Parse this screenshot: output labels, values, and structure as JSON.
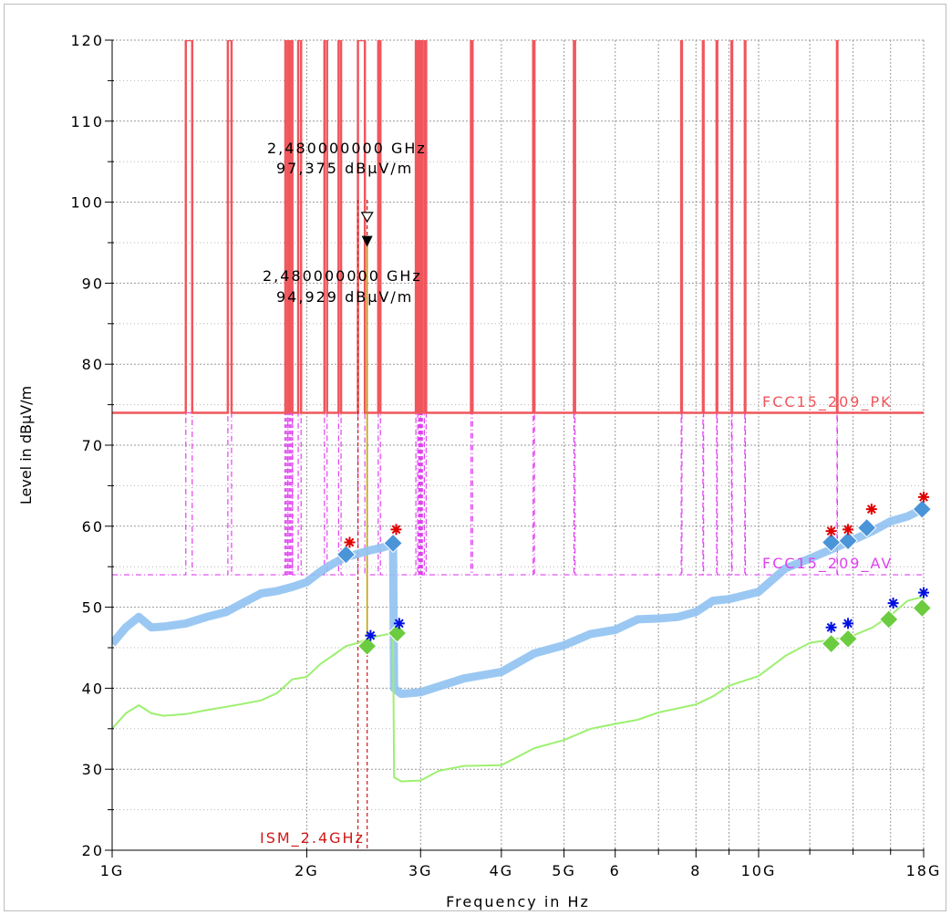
{
  "chart_data": {
    "type": "line",
    "xlabel": "Frequency in Hz",
    "ylabel": "Level in dBµV/m",
    "xscale": "log",
    "xlim": [
      1,
      18
    ],
    "ylim": [
      20,
      120
    ],
    "grid": true,
    "x_ticks": [
      {
        "value": 1,
        "label": "1G"
      },
      {
        "value": 2,
        "label": "2G"
      },
      {
        "value": 3,
        "label": "3G"
      },
      {
        "value": 4,
        "label": "4G"
      },
      {
        "value": 5,
        "label": "5G"
      },
      {
        "value": 6,
        "label": "6"
      },
      {
        "value": 8,
        "label": "8"
      },
      {
        "value": 10,
        "label": "10G"
      },
      {
        "value": 18,
        "label": "18G"
      }
    ],
    "x_minor_ticks": [
      7,
      9,
      12,
      14,
      16
    ],
    "y_ticks": [
      20,
      30,
      40,
      50,
      60,
      70,
      80,
      90,
      100,
      110,
      120
    ],
    "limit_pk": {
      "label": "FCC15_209_PK",
      "color": "#f0565c",
      "level": 74,
      "top": 120,
      "bands_ghz": [
        [
          1.3,
          1.33
        ],
        [
          1.51,
          1.53
        ],
        [
          1.87,
          1.9
        ],
        [
          1.94,
          1.96
        ],
        [
          2.13,
          2.15
        ],
        [
          2.24,
          2.26
        ],
        [
          2.4,
          2.46
        ],
        [
          2.58,
          2.6
        ],
        [
          2.95,
          2.97
        ],
        [
          3.04,
          3.06
        ],
        [
          3.59,
          3.61
        ],
        [
          4.48,
          4.5
        ],
        [
          5.18,
          5.2
        ],
        [
          7.59,
          7.61
        ],
        [
          8.2,
          8.22
        ],
        [
          8.61,
          8.63
        ],
        [
          9.08,
          9.1
        ],
        [
          9.52,
          9.54
        ],
        [
          13.22,
          13.24
        ]
      ],
      "hatched_ghz": [
        [
          1.85,
          1.91
        ],
        [
          2.98,
          3.02
        ]
      ]
    },
    "limit_av": {
      "label": "FCC15_209_AV",
      "color": "#e040f0",
      "level": 54,
      "top": 74
    },
    "ism_band": {
      "label": "ISM_2.4GHz",
      "color": "#d01818",
      "from": 2.4,
      "to": 2.48
    },
    "markers": [
      {
        "freq": "2,480000000 GHz",
        "level": "97,375 dBµV/m",
        "value": 97.375,
        "x": 2.48
      },
      {
        "freq": "2,480000000 GHz",
        "level": "94,929 dBµV/m",
        "value": 94.929,
        "x": 2.48
      }
    ],
    "series": [
      {
        "color": "#90c2f2",
        "points": [
          [
            1.0,
            45.5
          ],
          [
            1.05,
            47.5
          ],
          [
            1.1,
            48.8
          ],
          [
            1.15,
            47.5
          ],
          [
            1.2,
            47.6
          ],
          [
            1.3,
            48.0
          ],
          [
            1.4,
            48.8
          ],
          [
            1.5,
            49.4
          ],
          [
            1.6,
            50.6
          ],
          [
            1.7,
            51.7
          ],
          [
            1.8,
            52.0
          ],
          [
            1.9,
            52.5
          ],
          [
            2.0,
            53.1
          ],
          [
            2.1,
            54.4
          ],
          [
            2.2,
            55.4
          ],
          [
            2.3,
            56.2
          ],
          [
            2.4,
            56.6
          ],
          [
            2.5,
            57.0
          ],
          [
            2.6,
            57.3
          ],
          [
            2.72,
            57.8
          ],
          [
            2.73,
            40.0
          ],
          [
            2.8,
            39.3
          ],
          [
            3.0,
            39.5
          ],
          [
            3.5,
            41.2
          ],
          [
            4.0,
            42.0
          ],
          [
            4.5,
            44.3
          ],
          [
            5.0,
            45.3
          ],
          [
            5.5,
            46.7
          ],
          [
            6.0,
            47.2
          ],
          [
            6.5,
            48.5
          ],
          [
            7.0,
            48.6
          ],
          [
            7.5,
            48.8
          ],
          [
            8.0,
            49.4
          ],
          [
            8.5,
            50.8
          ],
          [
            9.0,
            51.0
          ],
          [
            10.0,
            51.9
          ],
          [
            11.0,
            54.8
          ],
          [
            12.0,
            56.0
          ],
          [
            13.0,
            57.2
          ],
          [
            14.0,
            58.3
          ],
          [
            15.0,
            59.4
          ],
          [
            16.0,
            60.6
          ],
          [
            17.0,
            61.2
          ],
          [
            18.0,
            62.2
          ]
        ]
      },
      {
        "color": "#9df070",
        "points": [
          [
            1.0,
            35.0
          ],
          [
            1.05,
            36.9
          ],
          [
            1.1,
            37.9
          ],
          [
            1.15,
            36.9
          ],
          [
            1.2,
            36.6
          ],
          [
            1.3,
            36.8
          ],
          [
            1.4,
            37.3
          ],
          [
            1.5,
            37.7
          ],
          [
            1.6,
            38.1
          ],
          [
            1.7,
            38.5
          ],
          [
            1.8,
            39.4
          ],
          [
            1.9,
            41.1
          ],
          [
            2.0,
            41.4
          ],
          [
            2.1,
            43.0
          ],
          [
            2.2,
            44.1
          ],
          [
            2.3,
            45.2
          ],
          [
            2.4,
            45.6
          ],
          [
            2.5,
            46.2
          ],
          [
            2.6,
            46.5
          ],
          [
            2.72,
            46.8
          ],
          [
            2.73,
            29.0
          ],
          [
            2.8,
            28.5
          ],
          [
            3.0,
            28.6
          ],
          [
            3.2,
            29.8
          ],
          [
            3.5,
            30.4
          ],
          [
            4.0,
            30.5
          ],
          [
            4.5,
            32.6
          ],
          [
            5.0,
            33.6
          ],
          [
            5.5,
            35.0
          ],
          [
            6.0,
            35.6
          ],
          [
            6.5,
            36.1
          ],
          [
            7.0,
            37.0
          ],
          [
            8.0,
            38.0
          ],
          [
            8.5,
            39.0
          ],
          [
            9.0,
            40.3
          ],
          [
            10.0,
            41.5
          ],
          [
            11.0,
            44.0
          ],
          [
            12.0,
            45.6
          ],
          [
            13.0,
            46.0
          ],
          [
            14.0,
            46.5
          ],
          [
            15.0,
            47.5
          ],
          [
            16.0,
            49.0
          ],
          [
            17.0,
            50.8
          ],
          [
            18.0,
            51.3
          ]
        ]
      }
    ],
    "pk_final": [
      {
        "x": 2.3,
        "y": 56.5
      },
      {
        "x": 2.72,
        "y": 57.9
      },
      {
        "x": 12.95,
        "y": 58.0
      },
      {
        "x": 13.75,
        "y": 58.2
      },
      {
        "x": 14.7,
        "y": 59.8
      },
      {
        "x": 17.9,
        "y": 62.1
      }
    ],
    "av_final": [
      {
        "x": 2.48,
        "y": 45.2
      },
      {
        "x": 2.76,
        "y": 46.8
      },
      {
        "x": 12.95,
        "y": 45.5
      },
      {
        "x": 13.75,
        "y": 46.1
      },
      {
        "x": 15.9,
        "y": 48.5
      },
      {
        "x": 17.9,
        "y": 49.9
      }
    ],
    "pk_peaks": [
      {
        "x": 2.33,
        "y": 58.0
      },
      {
        "x": 2.75,
        "y": 59.6
      },
      {
        "x": 12.95,
        "y": 59.4
      },
      {
        "x": 13.75,
        "y": 59.6
      },
      {
        "x": 14.95,
        "y": 62.1
      },
      {
        "x": 18.0,
        "y": 63.6
      }
    ],
    "av_peaks": [
      {
        "x": 2.51,
        "y": 46.5
      },
      {
        "x": 2.78,
        "y": 48.0
      },
      {
        "x": 12.95,
        "y": 47.5
      },
      {
        "x": 13.75,
        "y": 48.0
      },
      {
        "x": 16.15,
        "y": 50.5
      },
      {
        "x": 18.0,
        "y": 51.8
      }
    ]
  }
}
